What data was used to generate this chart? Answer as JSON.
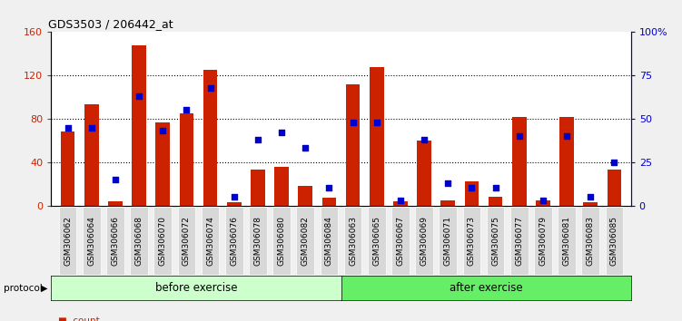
{
  "title": "GDS3503 / 206442_at",
  "categories": [
    "GSM306062",
    "GSM306064",
    "GSM306066",
    "GSM306068",
    "GSM306070",
    "GSM306072",
    "GSM306074",
    "GSM306076",
    "GSM306078",
    "GSM306080",
    "GSM306082",
    "GSM306084",
    "GSM306063",
    "GSM306065",
    "GSM306067",
    "GSM306069",
    "GSM306071",
    "GSM306073",
    "GSM306075",
    "GSM306077",
    "GSM306079",
    "GSM306081",
    "GSM306083",
    "GSM306085"
  ],
  "count_values": [
    68,
    93,
    4,
    148,
    77,
    85,
    125,
    3,
    33,
    36,
    18,
    7,
    112,
    128,
    4,
    60,
    5,
    22,
    8,
    82,
    5,
    82,
    3,
    33
  ],
  "percentile_values": [
    45,
    45,
    15,
    63,
    43,
    55,
    68,
    5,
    38,
    42,
    33,
    10,
    48,
    48,
    3,
    38,
    13,
    10,
    10,
    40,
    3,
    40,
    5,
    25
  ],
  "group_labels": [
    "before exercise",
    "after exercise"
  ],
  "group_colors": [
    "#ccffcc",
    "#66ee66"
  ],
  "bar_color": "#cc2200",
  "percentile_color": "#0000cc",
  "ylim_left": [
    0,
    160
  ],
  "ylim_right": [
    0,
    100
  ],
  "yticks_left": [
    0,
    40,
    80,
    120,
    160
  ],
  "yticks_right": [
    0,
    25,
    50,
    75,
    100
  ],
  "yticklabels_right": [
    "0",
    "25",
    "50",
    "75",
    "100%"
  ],
  "grid_lines": [
    40,
    80,
    120
  ],
  "bg_color": "#f0f0f0",
  "plot_bg": "#ffffff",
  "protocol_label": "protocol",
  "n_before": 12,
  "n_after": 12
}
